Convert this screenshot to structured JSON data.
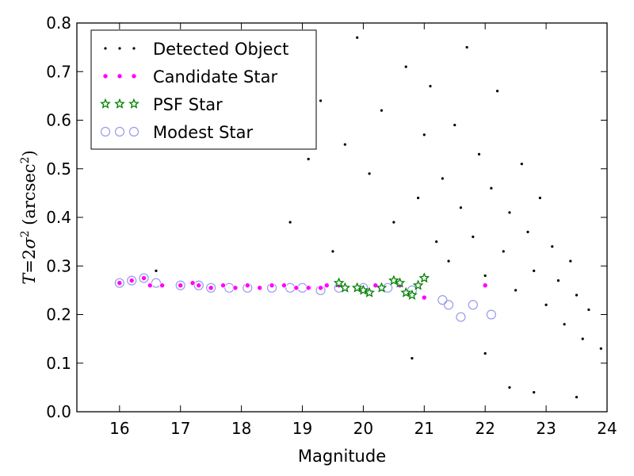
{
  "chart_data": {
    "type": "scatter",
    "xlabel": "Magnitude",
    "ylabel_parts": {
      "t": "T",
      "eq": "=",
      "two": "2",
      "sigma": "σ",
      "sq": "2",
      "unit_open": " (arcsec",
      "unit_sq": "2",
      "unit_close": ")"
    },
    "xlim": [
      15.3,
      24.0
    ],
    "ylim": [
      0.0,
      0.8
    ],
    "xticks": [
      "16",
      "17",
      "18",
      "19",
      "20",
      "21",
      "22",
      "23",
      "24"
    ],
    "yticks": [
      "0.0",
      "0.1",
      "0.2",
      "0.3",
      "0.4",
      "0.5",
      "0.6",
      "0.7",
      "0.8"
    ],
    "grid": false,
    "legend_position": "top-left",
    "colors": {
      "detected": "#000000",
      "candidate_face": "#ff00ff",
      "candidate_edge": "#ffffff",
      "psf": "#008000",
      "modest": "#9999ee"
    },
    "series": [
      {
        "name": "Detected Object",
        "marker": "dot",
        "points": [
          [
            16.6,
            0.29
          ],
          [
            19.1,
            0.52
          ],
          [
            19.3,
            0.64
          ],
          [
            19.5,
            0.33
          ],
          [
            19.7,
            0.55
          ],
          [
            19.9,
            0.77
          ],
          [
            20.1,
            0.49
          ],
          [
            20.3,
            0.62
          ],
          [
            20.5,
            0.39
          ],
          [
            20.7,
            0.71
          ],
          [
            20.9,
            0.44
          ],
          [
            21.0,
            0.57
          ],
          [
            21.1,
            0.67
          ],
          [
            21.2,
            0.35
          ],
          [
            21.3,
            0.48
          ],
          [
            21.4,
            0.31
          ],
          [
            21.5,
            0.59
          ],
          [
            21.6,
            0.42
          ],
          [
            21.7,
            0.75
          ],
          [
            21.8,
            0.36
          ],
          [
            21.9,
            0.53
          ],
          [
            22.0,
            0.28
          ],
          [
            22.1,
            0.46
          ],
          [
            22.2,
            0.66
          ],
          [
            22.3,
            0.33
          ],
          [
            22.4,
            0.41
          ],
          [
            22.5,
            0.25
          ],
          [
            22.6,
            0.51
          ],
          [
            22.7,
            0.37
          ],
          [
            22.8,
            0.29
          ],
          [
            22.9,
            0.44
          ],
          [
            23.0,
            0.22
          ],
          [
            23.1,
            0.34
          ],
          [
            23.2,
            0.27
          ],
          [
            23.3,
            0.18
          ],
          [
            23.4,
            0.31
          ],
          [
            23.5,
            0.24
          ],
          [
            23.6,
            0.15
          ],
          [
            23.7,
            0.21
          ],
          [
            23.9,
            0.13
          ],
          [
            18.8,
            0.39
          ],
          [
            20.8,
            0.11
          ],
          [
            22.0,
            0.12
          ],
          [
            22.4,
            0.05
          ],
          [
            22.8,
            0.04
          ],
          [
            23.5,
            0.03
          ]
        ]
      },
      {
        "name": "Candidate Star",
        "marker": "circle-small",
        "points": [
          [
            16.0,
            0.265
          ],
          [
            16.2,
            0.27
          ],
          [
            16.4,
            0.275
          ],
          [
            16.5,
            0.26
          ],
          [
            16.7,
            0.26
          ],
          [
            17.0,
            0.26
          ],
          [
            17.2,
            0.265
          ],
          [
            17.3,
            0.26
          ],
          [
            17.5,
            0.255
          ],
          [
            17.7,
            0.26
          ],
          [
            17.9,
            0.255
          ],
          [
            18.1,
            0.26
          ],
          [
            18.3,
            0.255
          ],
          [
            18.5,
            0.26
          ],
          [
            18.7,
            0.26
          ],
          [
            18.9,
            0.255
          ],
          [
            19.1,
            0.255
          ],
          [
            19.3,
            0.255
          ],
          [
            19.4,
            0.26
          ],
          [
            19.6,
            0.26
          ],
          [
            19.9,
            0.255
          ],
          [
            20.2,
            0.26
          ],
          [
            20.6,
            0.26
          ],
          [
            21.0,
            0.235
          ],
          [
            22.0,
            0.26
          ]
        ]
      },
      {
        "name": "PSF Star",
        "marker": "star",
        "points": [
          [
            19.6,
            0.265
          ],
          [
            19.7,
            0.255
          ],
          [
            19.9,
            0.255
          ],
          [
            20.0,
            0.25
          ],
          [
            20.1,
            0.245
          ],
          [
            20.3,
            0.255
          ],
          [
            20.5,
            0.27
          ],
          [
            20.6,
            0.265
          ],
          [
            20.7,
            0.245
          ],
          [
            20.8,
            0.24
          ],
          [
            20.9,
            0.26
          ],
          [
            21.0,
            0.275
          ]
        ]
      },
      {
        "name": "Modest Star",
        "marker": "circle-open",
        "points": [
          [
            16.0,
            0.265
          ],
          [
            16.2,
            0.27
          ],
          [
            16.4,
            0.275
          ],
          [
            16.6,
            0.265
          ],
          [
            17.0,
            0.26
          ],
          [
            17.3,
            0.26
          ],
          [
            17.5,
            0.255
          ],
          [
            17.8,
            0.255
          ],
          [
            18.1,
            0.255
          ],
          [
            18.5,
            0.255
          ],
          [
            18.8,
            0.255
          ],
          [
            19.0,
            0.255
          ],
          [
            19.3,
            0.25
          ],
          [
            19.6,
            0.255
          ],
          [
            20.0,
            0.255
          ],
          [
            20.4,
            0.255
          ],
          [
            20.8,
            0.25
          ],
          [
            21.3,
            0.23
          ],
          [
            21.4,
            0.22
          ],
          [
            21.6,
            0.195
          ],
          [
            21.8,
            0.22
          ],
          [
            22.1,
            0.2
          ]
        ]
      }
    ]
  }
}
